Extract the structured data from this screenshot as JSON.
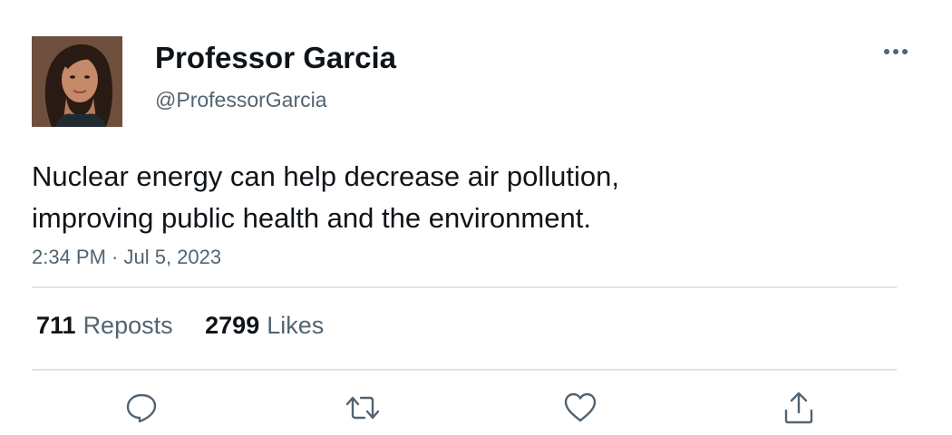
{
  "author": {
    "display_name": "Professor Garcia",
    "handle": "@ProfessorGarcia"
  },
  "tweet": {
    "text_line1": "Nuclear energy can help decrease air pollution,",
    "text_line2": "improving public health and the environment.",
    "timestamp": "2:34 PM · Jul 5, 2023"
  },
  "stats": {
    "reposts_count": "711",
    "reposts_label": "Reposts",
    "likes_count": "2799",
    "likes_label": "Likes"
  },
  "colors": {
    "text": "#0f1419",
    "secondary_text": "#536471",
    "divider": "#e1e4e8",
    "icon": "#536471"
  },
  "icons": {
    "more": "more-horizontal-icon",
    "reply": "reply-icon",
    "repost": "repost-icon",
    "like": "heart-icon",
    "share": "share-icon"
  }
}
